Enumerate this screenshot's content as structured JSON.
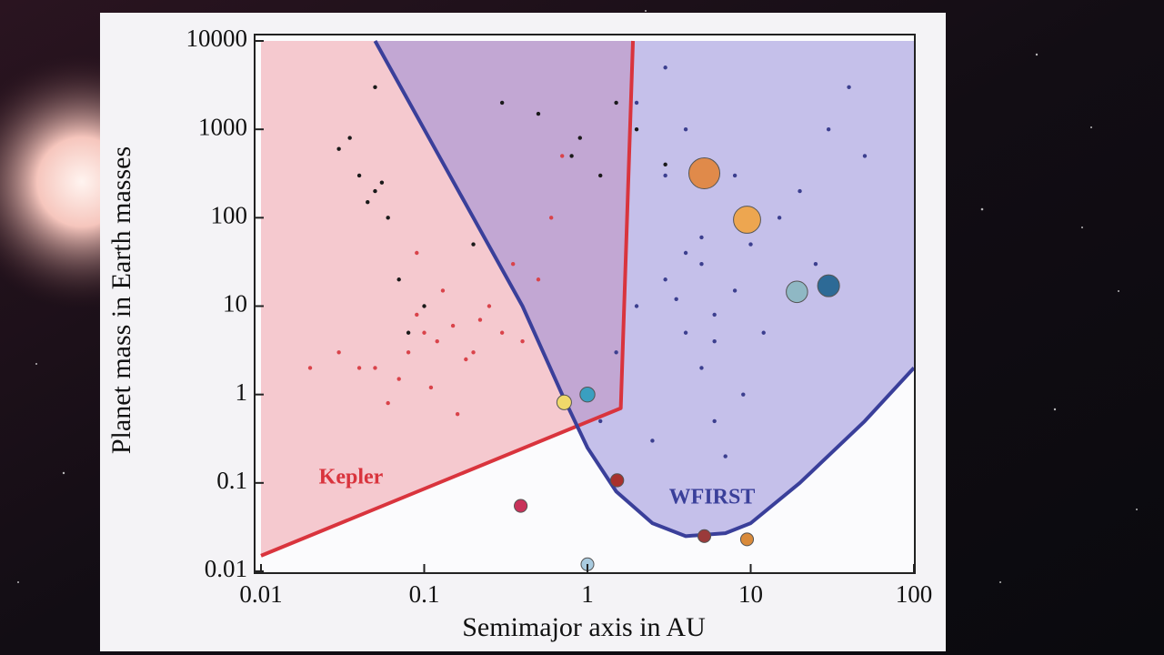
{
  "chart_data": {
    "type": "scatter",
    "log_x": true,
    "log_y": true,
    "x_label": "Semimajor axis in AU",
    "y_label": "Planet mass in Earth masses",
    "xlim": [
      0.01,
      100
    ],
    "ylim": [
      0.01,
      10000
    ],
    "xticks": [
      0.01,
      0.1,
      1,
      10,
      100
    ],
    "yticks": [
      0.01,
      0.1,
      1,
      10,
      100,
      1000,
      10000
    ],
    "regions": [
      {
        "name": "Kepler",
        "color": "#d9343d",
        "fill": "#f2a9b0",
        "x": [
          0.01,
          1.6,
          1.9
        ],
        "y": [
          0.015,
          0.7,
          10000
        ]
      },
      {
        "name": "WFIRST",
        "color": "#3a3f9a",
        "fill": "#8f86d8",
        "x": [
          0.05,
          0.1,
          0.2,
          0.4,
          0.7,
          1,
          1.5,
          2.5,
          4,
          7,
          10,
          20,
          50,
          100
        ],
        "y": [
          10000,
          1000,
          100,
          10,
          1,
          0.25,
          0.08,
          0.035,
          0.025,
          0.027,
          0.035,
          0.1,
          0.5,
          2
        ]
      }
    ],
    "series": [
      {
        "color": "#1a1a1a",
        "x": [
          0.03,
          0.04,
          0.05,
          0.045,
          0.06,
          0.035,
          0.055,
          0.05,
          0.3,
          0.5,
          0.8,
          1.2,
          0.9,
          2,
          3,
          0.2,
          0.1,
          0.08,
          0.07,
          1.5
        ],
        "y": [
          600,
          300,
          200,
          150,
          100,
          800,
          250,
          3000,
          2000,
          1500,
          500,
          300,
          800,
          1000,
          400,
          50,
          10,
          5,
          20,
          2000
        ]
      },
      {
        "color": "#d9434a",
        "x": [
          0.05,
          0.08,
          0.1,
          0.12,
          0.15,
          0.2,
          0.07,
          0.09,
          0.3,
          0.25,
          0.04,
          0.03,
          0.06,
          0.11,
          0.18,
          0.5,
          0.4,
          0.13,
          0.02,
          0.16,
          0.22,
          0.35,
          0.6,
          0.7,
          0.09
        ],
        "y": [
          2,
          3,
          5,
          4,
          6,
          3,
          1.5,
          8,
          5,
          10,
          2,
          3,
          0.8,
          1.2,
          2.5,
          20,
          4,
          15,
          2,
          0.6,
          7,
          30,
          100,
          500,
          40
        ]
      },
      {
        "color": "#3c3f8f",
        "x": [
          1.5,
          2,
          3,
          4,
          5,
          6,
          8,
          10,
          15,
          20,
          30,
          40,
          3,
          4,
          5,
          6,
          2.5,
          7,
          9,
          12,
          5,
          4,
          3.5,
          6,
          8,
          2,
          25,
          50,
          1.2,
          3
        ],
        "y": [
          3,
          10,
          20,
          5,
          30,
          8,
          15,
          50,
          100,
          200,
          1000,
          3000,
          300,
          1000,
          2,
          0.5,
          0.3,
          0.2,
          1,
          5,
          60,
          40,
          12,
          4,
          300,
          2000,
          30,
          500,
          0.5,
          5000
        ]
      }
    ],
    "planets": {
      "x": [
        0.39,
        0.72,
        1,
        1.52,
        5.2,
        9.5,
        19.2,
        30,
        1,
        5.2,
        9.5
      ],
      "y": [
        0.055,
        0.815,
        1,
        0.107,
        318,
        95,
        14.5,
        17,
        0.012,
        0.025,
        0.023
      ],
      "colors": [
        "#c8325a",
        "#f0d96a",
        "#3a9fc0",
        "#a8302c",
        "#e08a4a",
        "#eda650",
        "#8fb8c4",
        "#2d6a96",
        "#a9cbe0",
        "#9a3a3a",
        "#d98a3a"
      ]
    }
  }
}
